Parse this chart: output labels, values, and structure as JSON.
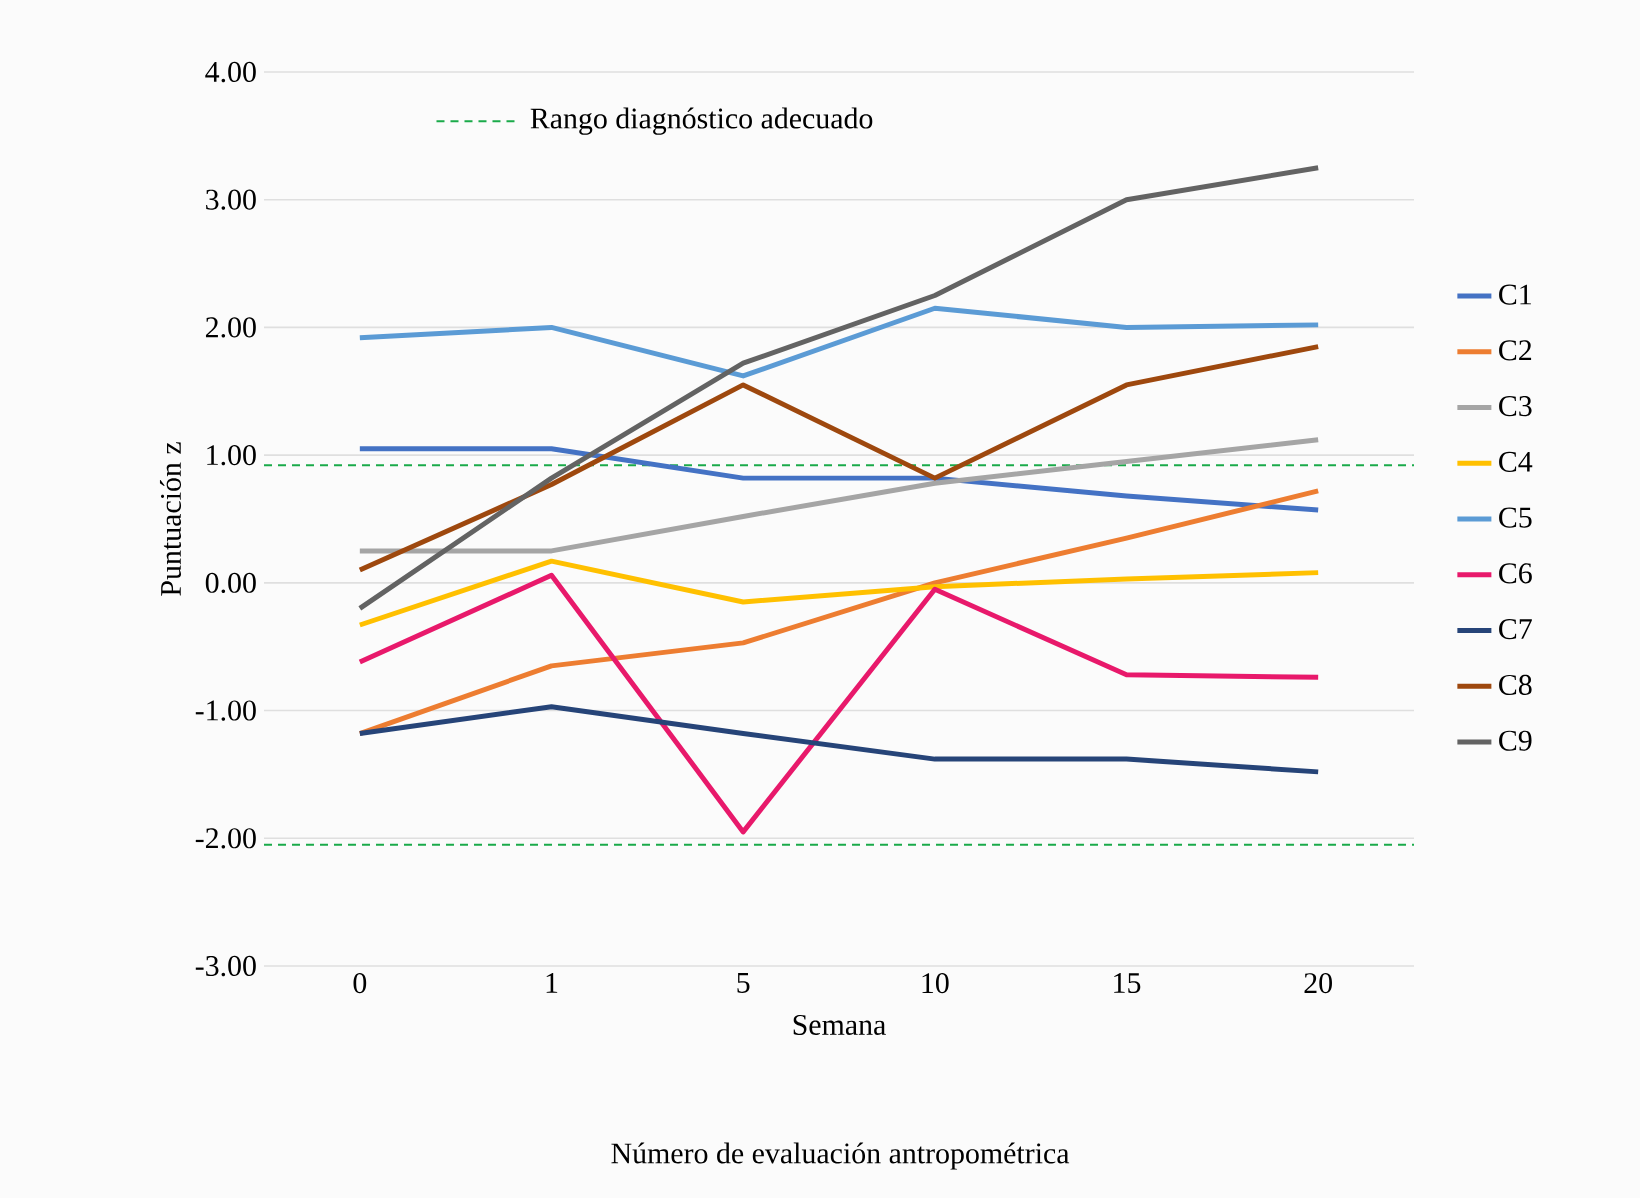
{
  "chart_data": {
    "type": "line",
    "xlabel": "Semana",
    "ylabel": "Puntuación z",
    "annotations": [
      "Número de evaluación antropométrica"
    ],
    "categories": [
      "0",
      "1",
      "5",
      "10",
      "15",
      "20"
    ],
    "ylim": [
      -3,
      4
    ],
    "yticks": [
      {
        "value": -3,
        "label": "-3.00"
      },
      {
        "value": -2,
        "label": "-2.00"
      },
      {
        "value": -1,
        "label": "-1.00"
      },
      {
        "value": 0,
        "label": "0.00"
      },
      {
        "value": 1,
        "label": "1.00"
      },
      {
        "value": 2,
        "label": "2.00"
      },
      {
        "value": 3,
        "label": "3.00"
      },
      {
        "value": 4,
        "label": "4.00"
      }
    ],
    "grid": "y",
    "legend": "right",
    "marker": "none",
    "line_style": "solid",
    "ref_lines": [
      {
        "axis": "y",
        "value": 0.92,
        "label": "Rango diagnóstico adecuado",
        "color": "#1aaa4a",
        "line_style": "dashed"
      },
      {
        "axis": "y",
        "value": -2.05,
        "color": "#1aaa4a",
        "line_style": "dashed"
      }
    ],
    "series": [
      {
        "name": "C1",
        "color": "#4472c4",
        "values": [
          1.05,
          1.05,
          0.82,
          0.82,
          0.68,
          0.57
        ]
      },
      {
        "name": "C2",
        "color": "#ed7d31",
        "values": [
          -1.18,
          -0.65,
          -0.47,
          0.0,
          0.35,
          0.72
        ]
      },
      {
        "name": "C3",
        "color": "#a5a5a5",
        "values": [
          0.25,
          0.25,
          0.52,
          0.78,
          0.95,
          1.12
        ]
      },
      {
        "name": "C4",
        "color": "#ffc000",
        "values": [
          -0.33,
          0.17,
          -0.15,
          -0.03,
          0.03,
          0.08
        ]
      },
      {
        "name": "C5",
        "color": "#5b9bd5",
        "values": [
          1.92,
          2.0,
          1.62,
          2.15,
          2.0,
          2.02
        ]
      },
      {
        "name": "C6",
        "color": "#e8196b",
        "values": [
          -0.62,
          0.06,
          -1.95,
          -0.05,
          -0.72,
          -0.74
        ]
      },
      {
        "name": "C7",
        "color": "#264478",
        "values": [
          -1.18,
          -0.97,
          -1.18,
          -1.38,
          -1.38,
          -1.48
        ]
      },
      {
        "name": "C8",
        "color": "#9e480e",
        "values": [
          0.1,
          0.77,
          1.55,
          0.82,
          1.55,
          1.85
        ]
      },
      {
        "name": "C9",
        "color": "#636363",
        "values": [
          -0.2,
          0.82,
          1.72,
          2.25,
          3.0,
          3.25
        ]
      }
    ]
  }
}
